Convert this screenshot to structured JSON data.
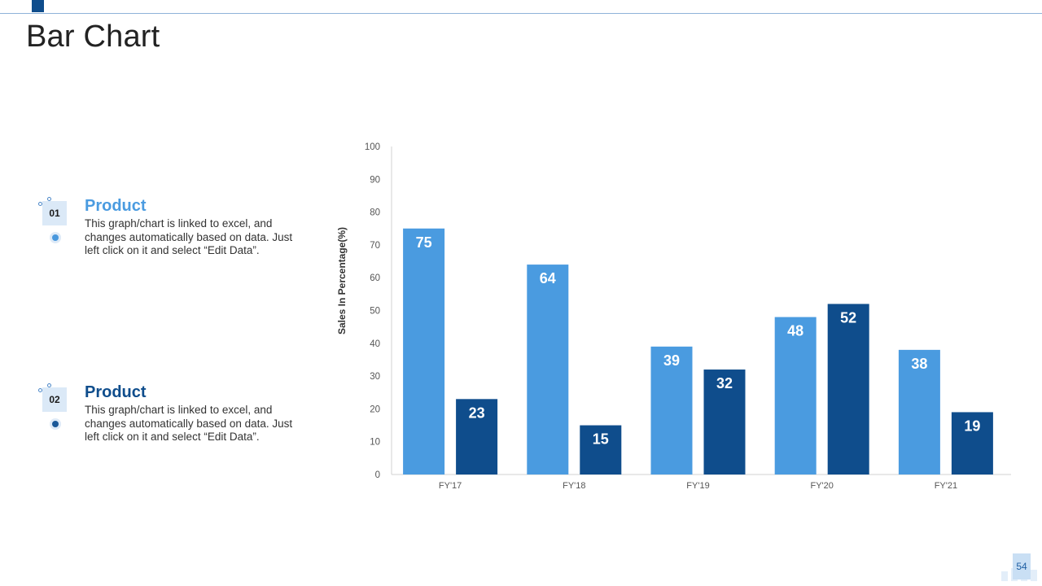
{
  "header": {
    "title": "Bar Chart"
  },
  "products": [
    {
      "number": "01",
      "title": "Product",
      "description": "This graph/chart is linked to excel, and changes automatically based on data. Just left click on it and select “Edit Data”.",
      "color": "#4a9be0"
    },
    {
      "number": "02",
      "title": "Product",
      "description": "This graph/chart is linked to excel, and changes automatically based on data. Just left click on it and select “Edit Data”.",
      "color": "#0f4d8c"
    }
  ],
  "chart_data": {
    "type": "bar",
    "title": "",
    "xlabel": "",
    "ylabel": "Sales In Percentage(%)",
    "categories": [
      "FY'17",
      "FY'18",
      "FY'19",
      "FY'20",
      "FY'21"
    ],
    "series": [
      {
        "name": "Product 01",
        "color": "#4a9be0",
        "values": [
          75,
          64,
          39,
          48,
          38
        ]
      },
      {
        "name": "Product 02",
        "color": "#0f4d8c",
        "values": [
          23,
          15,
          32,
          52,
          19
        ]
      }
    ],
    "ylim": [
      0,
      100
    ],
    "yticks": [
      0,
      10,
      20,
      30,
      40,
      50,
      60,
      70,
      80,
      90,
      100
    ],
    "grid": false,
    "legend": "none"
  },
  "footer": {
    "page_number": "54"
  }
}
